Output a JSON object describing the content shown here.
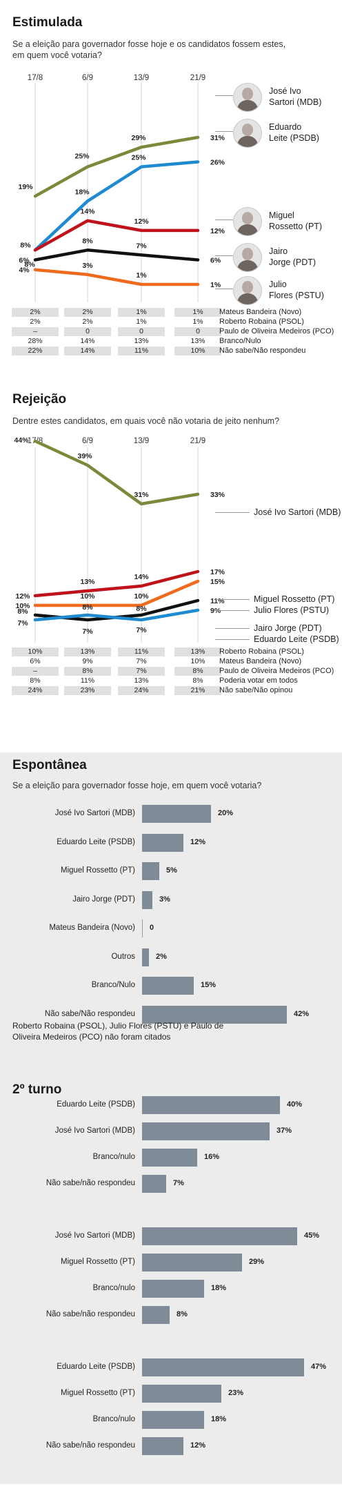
{
  "chart_data": [
    {
      "type": "line",
      "title": "Estimulada",
      "subtitle": "Se a eleição para governador fosse hoje e os candidatos fossem estes, em quem você votaria?",
      "x": [
        "17/8",
        "6/9",
        "13/9",
        "21/9"
      ],
      "series": [
        {
          "name": "José Ivo Sartori (MDB)",
          "label_lines": [
            "José Ivo",
            "Sartori (MDB)"
          ],
          "color": "#7a8a3a",
          "values": [
            19,
            25,
            29,
            31
          ]
        },
        {
          "name": "Eduardo Leite (PSDB)",
          "label_lines": [
            "Eduardo",
            "Leite (PSDB)"
          ],
          "color": "#1e8bd0",
          "values": [
            8,
            18,
            25,
            26
          ]
        },
        {
          "name": "Miguel Rossetto (PT)",
          "label_lines": [
            "Miguel",
            "Rossetto (PT)"
          ],
          "color": "#c0121a",
          "values": [
            8,
            14,
            12,
            12
          ]
        },
        {
          "name": "Jairo Jorge (PDT)",
          "label_lines": [
            "Jairo",
            "Jorge (PDT)"
          ],
          "color": "#111111",
          "values": [
            6,
            8,
            7,
            6
          ]
        },
        {
          "name": "Julio Flores (PSTU)",
          "label_lines": [
            "Julio",
            "Flores (PSTU)"
          ],
          "color": "#f06a1e",
          "values": [
            4,
            3,
            1,
            1
          ]
        }
      ],
      "table": [
        {
          "values": [
            "2%",
            "2%",
            "1%",
            "1%"
          ],
          "label": "Mateus Bandeira (Novo)"
        },
        {
          "values": [
            "2%",
            "2%",
            "1%",
            "1%"
          ],
          "label": "Roberto Robaina (PSOL)"
        },
        {
          "values": [
            "–",
            "0",
            "0",
            "0"
          ],
          "label": "Paulo de Oliveira Medeiros (PCO)"
        },
        {
          "values": [
            "28%",
            "14%",
            "13%",
            "13%"
          ],
          "label": "Branco/Nulo"
        },
        {
          "values": [
            "22%",
            "14%",
            "11%",
            "10%"
          ],
          "label": "Não sabe/Não respondeu"
        }
      ]
    },
    {
      "type": "line",
      "title": "Rejeição",
      "subtitle": "Dentre estes candidatos, em quais você não votaria de jeito nenhum?",
      "x": [
        "17/8",
        "6/9",
        "13/9",
        "21/9"
      ],
      "series": [
        {
          "name": "José Ivo Sartori (MDB)",
          "color": "#7a8a3a",
          "values": [
            44,
            39,
            31,
            33
          ]
        },
        {
          "name": "Miguel Rossetto (PT)",
          "color": "#c0121a",
          "values": [
            12,
            13,
            14,
            17
          ]
        },
        {
          "name": "Julio Flores (PSTU)",
          "color": "#f06a1e",
          "values": [
            10,
            10,
            10,
            15
          ]
        },
        {
          "name": "Jairo Jorge (PDT)",
          "color": "#111111",
          "values": [
            8,
            7,
            8,
            11
          ]
        },
        {
          "name": "Eduardo Leite (PSDB)",
          "color": "#1e8bd0",
          "values": [
            7,
            8,
            7,
            9
          ]
        }
      ],
      "table": [
        {
          "values": [
            "10%",
            "13%",
            "11%",
            "13%"
          ],
          "label": "Roberto Robaina (PSOL)"
        },
        {
          "values": [
            "6%",
            "9%",
            "7%",
            "10%"
          ],
          "label": "Mateus Bandeira (Novo)"
        },
        {
          "values": [
            "–",
            "8%",
            "7%",
            "8%"
          ],
          "label": "Paulo de Oliveira Medeiros (PCO)"
        },
        {
          "values": [
            "8%",
            "11%",
            "13%",
            "8%"
          ],
          "label": "Poderia votar em todos"
        },
        {
          "values": [
            "24%",
            "23%",
            "24%",
            "21%"
          ],
          "label": "Não sabe/Não opinou"
        }
      ]
    },
    {
      "type": "bar",
      "title": "Espontânea",
      "subtitle": "Se a eleição para governador fosse hoje,  em quem você votaria?",
      "categories": [
        "José Ivo Sartori (MDB)",
        "Eduardo Leite (PSDB)",
        "Miguel Rossetto (PT)",
        "Jairo Jorge (PDT)",
        "Mateus Bandeira (Novo)",
        "Outros",
        "Branco/Nulo",
        "Não sabe/Não respondeu"
      ],
      "values": [
        20,
        12,
        5,
        3,
        0,
        2,
        15,
        42
      ],
      "value_labels": [
        "20%",
        "12%",
        "5%",
        "3%",
        "0",
        "2%",
        "15%",
        "42%"
      ],
      "note": [
        "Roberto Robaina (PSOL), Julio Flores (PSTU) e Paulo de",
        "Oliveira Medeiros (PCO) não foram citados"
      ]
    },
    {
      "type": "bar",
      "title": "2º turno",
      "groups": [
        {
          "categories": [
            "Eduardo Leite (PSDB)",
            "José Ivo Sartori (MDB)",
            "Branco/nulo",
            "Não sabe/não respondeu"
          ],
          "values": [
            40,
            37,
            16,
            7
          ],
          "value_labels": [
            "40%",
            "37%",
            "16%",
            "7%"
          ]
        },
        {
          "categories": [
            "José Ivo Sartori (MDB)",
            "Miguel Rossetto (PT)",
            "Branco/nulo",
            "Não sabe/não respondeu"
          ],
          "values": [
            45,
            29,
            18,
            8
          ],
          "value_labels": [
            "45%",
            "29%",
            "18%",
            "8%"
          ]
        },
        {
          "categories": [
            "Eduardo Leite (PSDB)",
            "Miguel Rossetto (PT)",
            "Branco/nulo",
            "Não sabe/não respondeu"
          ],
          "values": [
            47,
            23,
            18,
            12
          ],
          "value_labels": [
            "47%",
            "23%",
            "18%",
            "12%"
          ]
        }
      ]
    }
  ]
}
